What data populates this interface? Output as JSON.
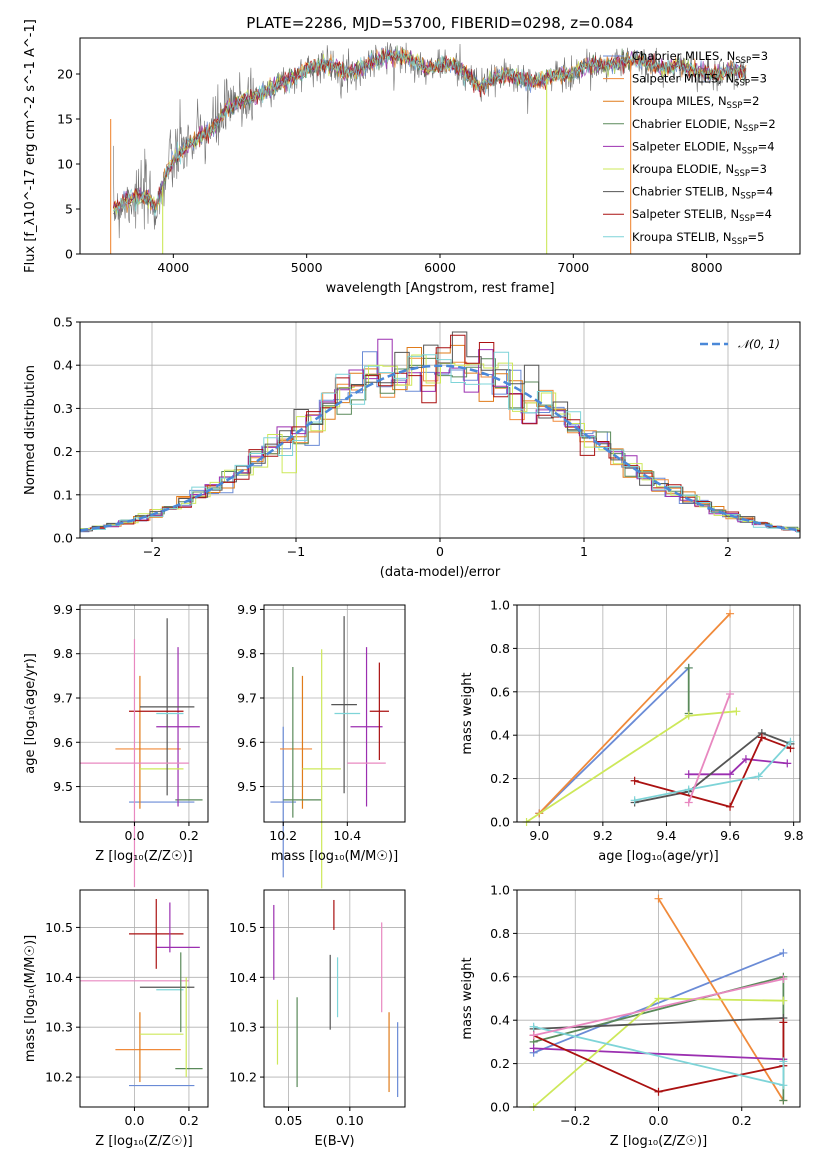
{
  "title": "PLATE=2286, MJD=53700, FIBERID=0298, z=0.084",
  "colors": {
    "chabrier_miles": "#6a8bd6",
    "salpeter_miles": "#f08a3a",
    "kroupa_miles": "#e07b1a",
    "chabrier_elodie": "#5a8a5a",
    "salpeter_elodie": "#9b2fb0",
    "kroupa_elodie": "#cde85a",
    "chabrier_stelib": "#555555",
    "salpeter_stelib": "#aa1111",
    "kroupa_stelib": "#7ed4d8",
    "pink": "#e888c0",
    "normal": "#4a88d8",
    "grid": "#b0b0b0",
    "data": "#707070"
  },
  "chart_data": [
    {
      "id": "spectrum",
      "type": "line",
      "xlabel": "wavelength [Angstrom, rest frame]",
      "ylabel": "Flux [f_λ10^-17 erg cm^-2 s^-1 A^-1]",
      "xlim": [
        3300,
        8700
      ],
      "ylim": [
        0,
        24
      ],
      "xticks": [
        4000,
        5000,
        6000,
        7000,
        8000
      ],
      "yticks": [
        0,
        5,
        10,
        15,
        20
      ],
      "grid": false,
      "legend_position": "right",
      "legend": [
        {
          "name": "Chabrier MILES",
          "nssp": "3",
          "color_key": "chabrier_miles"
        },
        {
          "name": "Salpeter MILES",
          "nssp": "3",
          "color_key": "salpeter_miles"
        },
        {
          "name": "Kroupa MILES",
          "nssp": "2",
          "color_key": "kroupa_miles"
        },
        {
          "name": "Chabrier ELODIE",
          "nssp": "2",
          "color_key": "chabrier_elodie"
        },
        {
          "name": "Salpeter ELODIE",
          "nssp": "4",
          "color_key": "salpeter_elodie"
        },
        {
          "name": "Kroupa ELODIE",
          "nssp": "3",
          "color_key": "kroupa_elodie"
        },
        {
          "name": "Chabrier STELIB",
          "nssp": "4",
          "color_key": "chabrier_stelib"
        },
        {
          "name": "Salpeter STELIB",
          "nssp": "4",
          "color_key": "salpeter_stelib"
        },
        {
          "name": "Kroupa STELIB",
          "nssp": "5",
          "color_key": "kroupa_stelib"
        }
      ],
      "continuum": [
        [
          3550,
          5
        ],
        [
          3650,
          6
        ],
        [
          3800,
          6.5
        ],
        [
          3870,
          5
        ],
        [
          3950,
          9
        ],
        [
          4000,
          10.5
        ],
        [
          4100,
          12
        ],
        [
          4200,
          13
        ],
        [
          4300,
          14
        ],
        [
          4400,
          16
        ],
        [
          4500,
          17
        ],
        [
          4600,
          17.5
        ],
        [
          4700,
          18
        ],
        [
          4800,
          19
        ],
        [
          4900,
          19.5
        ],
        [
          5000,
          20.5
        ],
        [
          5100,
          21
        ],
        [
          5200,
          21
        ],
        [
          5300,
          20
        ],
        [
          5400,
          20.5
        ],
        [
          5500,
          21.5
        ],
        [
          5600,
          22
        ],
        [
          5700,
          22
        ],
        [
          5800,
          21.5
        ],
        [
          5900,
          20.5
        ],
        [
          6000,
          21
        ],
        [
          6100,
          21
        ],
        [
          6200,
          20
        ],
        [
          6300,
          18.5
        ],
        [
          6400,
          19.5
        ],
        [
          6500,
          20
        ],
        [
          6600,
          19.5
        ],
        [
          6700,
          19
        ],
        [
          6800,
          19.5
        ],
        [
          6900,
          20
        ],
        [
          7000,
          20
        ],
        [
          7100,
          21
        ],
        [
          7200,
          21
        ],
        [
          7300,
          21
        ],
        [
          7400,
          21.5
        ],
        [
          7500,
          21.5
        ],
        [
          7600,
          21
        ],
        [
          7700,
          20.5
        ],
        [
          7800,
          21
        ],
        [
          7900,
          20.5
        ],
        [
          8000,
          20
        ],
        [
          8100,
          20
        ],
        [
          8200,
          20.5
        ],
        [
          8300,
          20
        ]
      ],
      "spikes": [
        [
          3530,
          0
        ],
        [
          3920,
          0
        ],
        [
          6800,
          0
        ],
        [
          7430,
          0
        ]
      ]
    },
    {
      "id": "residuals",
      "type": "bar",
      "xlabel": "(data-model)/error",
      "ylabel": "Normed distribution",
      "xlim": [
        -2.5,
        2.5
      ],
      "ylim": [
        0,
        0.5
      ],
      "xticks": [
        -2,
        -1,
        0,
        1,
        2
      ],
      "yticks": [
        0.0,
        0.1,
        0.2,
        0.3,
        0.4,
        0.5
      ],
      "grid": true,
      "legend_position": "top-right",
      "normal_label": "𝒩(0, 1)",
      "bin_width": 0.1
    },
    {
      "id": "age_vs_Z",
      "type": "scatter",
      "xlabel": "Z [log₁₀(Z/Z☉)]",
      "ylabel": "age  [log₁₀(age/yr)]",
      "xlim": [
        -0.2,
        0.27
      ],
      "ylim": [
        9.42,
        9.91
      ],
      "xticks": [
        0.0,
        0.2
      ],
      "yticks": [
        9.5,
        9.6,
        9.7,
        9.8,
        9.9
      ],
      "grid": true,
      "points": [
        {
          "c": "chabrier_miles",
          "x": 0.1,
          "xe": 0.12,
          "y": 9.465,
          "ye": 0.0
        },
        {
          "c": "salpeter_miles",
          "x": 0.05,
          "xe": 0.12,
          "y": 9.585,
          "ye": 0.0
        },
        {
          "c": "kroupa_miles",
          "x": 0.02,
          "xe": 0.0,
          "y": 9.6,
          "ye": 0.15
        },
        {
          "c": "chabrier_elodie",
          "x": 0.2,
          "xe": 0.05,
          "y": 9.47,
          "ye": 0.0
        },
        {
          "c": "salpeter_elodie",
          "x": 0.16,
          "xe": 0.08,
          "y": 9.635,
          "ye": 0.18
        },
        {
          "c": "kroupa_elodie",
          "x": 0.1,
          "xe": 0.08,
          "y": 9.54,
          "ye": 0.0
        },
        {
          "c": "chabrier_stelib",
          "x": 0.12,
          "xe": 0.1,
          "y": 9.68,
          "ye": 0.2
        },
        {
          "c": "salpeter_stelib",
          "x": 0.08,
          "xe": 0.1,
          "y": 9.67,
          "ye": 0.0
        },
        {
          "c": "kroupa_stelib",
          "x": 0.13,
          "xe": 0.05,
          "y": 9.665,
          "ye": 0.0
        },
        {
          "c": "pink",
          "x": 0.0,
          "xe": 0.2,
          "y": 9.553,
          "ye": 0.28
        }
      ]
    },
    {
      "id": "age_vs_mass",
      "type": "scatter",
      "xlabel": "mass [log₁₀(M/M☉)]",
      "ylabel": "",
      "xlim": [
        10.14,
        10.58
      ],
      "ylim": [
        9.42,
        9.91
      ],
      "xticks": [
        10.2,
        10.4
      ],
      "yticks": [
        9.5,
        9.6,
        9.7,
        9.8,
        9.9
      ],
      "grid": true,
      "points": [
        {
          "c": "chabrier_miles",
          "x": 10.2,
          "xe": 0.04,
          "y": 9.465,
          "ye": 0.17
        },
        {
          "c": "salpeter_miles",
          "x": 10.24,
          "xe": 0.05,
          "y": 9.585,
          "ye": 0.0
        },
        {
          "c": "kroupa_miles",
          "x": 10.26,
          "xe": 0.0,
          "y": 9.6,
          "ye": 0.15
        },
        {
          "c": "chabrier_elodie",
          "x": 10.26,
          "xe": 0.06,
          "y": 9.47,
          "ye": 0.0
        },
        {
          "c": "salpeter_elodie",
          "x": 10.46,
          "xe": 0.05,
          "y": 9.635,
          "ye": 0.18
        },
        {
          "c": "kroupa_elodie",
          "x": 10.32,
          "xe": 0.06,
          "y": 9.54,
          "ye": 0.27
        },
        {
          "c": "chabrier_stelib",
          "x": 10.39,
          "xe": 0.04,
          "y": 9.685,
          "ye": 0.2
        },
        {
          "c": "salpeter_stelib",
          "x": 10.5,
          "xe": 0.03,
          "y": 9.67,
          "ye": 0.11
        },
        {
          "c": "kroupa_stelib",
          "x": 10.4,
          "xe": 0.04,
          "y": 9.665,
          "ye": 0.0
        },
        {
          "c": "pink",
          "x": 10.46,
          "xe": 0.06,
          "y": 9.553,
          "ye": 0.0
        },
        {
          "c": "chabrier_elodie",
          "x": 10.23,
          "xe": 0.0,
          "y": 9.6,
          "ye": 0.17
        }
      ]
    },
    {
      "id": "massweight_vs_age",
      "type": "line",
      "xlabel": "age  [log₁₀(age/yr)]",
      "ylabel": "mass weight",
      "xlim": [
        8.93,
        9.82
      ],
      "ylim": [
        0,
        1
      ],
      "xticks": [
        9.0,
        9.2,
        9.4,
        9.6,
        9.8
      ],
      "yticks": [
        0.0,
        0.2,
        0.4,
        0.6,
        0.8,
        1.0
      ],
      "grid": true,
      "series": [
        {
          "c": "chabrier_miles",
          "x": [
            9.0,
            9.47
          ],
          "y": [
            0.04,
            0.71
          ]
        },
        {
          "c": "salpeter_miles",
          "x": [
            9.0,
            9.6
          ],
          "y": [
            0.04,
            0.96
          ]
        },
        {
          "c": "chabrier_elodie",
          "x": [
            9.47,
            9.47
          ],
          "y": [
            0.5,
            0.71
          ]
        },
        {
          "c": "salpeter_elodie",
          "x": [
            9.47,
            9.6,
            9.65,
            9.78
          ],
          "y": [
            0.22,
            0.22,
            0.29,
            0.27
          ]
        },
        {
          "c": "kroupa_elodie",
          "x": [
            8.96,
            9.47,
            9.62
          ],
          "y": [
            0.0,
            0.49,
            0.51
          ]
        },
        {
          "c": "chabrier_stelib",
          "x": [
            9.3,
            9.47,
            9.7,
            9.79
          ],
          "y": [
            0.09,
            0.14,
            0.41,
            0.36
          ]
        },
        {
          "c": "salpeter_stelib",
          "x": [
            9.3,
            9.6,
            9.7,
            9.79
          ],
          "y": [
            0.19,
            0.07,
            0.39,
            0.34
          ]
        },
        {
          "c": "kroupa_stelib",
          "x": [
            9.3,
            9.47,
            9.69,
            9.79
          ],
          "y": [
            0.1,
            0.15,
            0.21,
            0.37
          ]
        },
        {
          "c": "pink",
          "x": [
            9.47,
            9.6
          ],
          "y": [
            0.09,
            0.59
          ]
        }
      ]
    },
    {
      "id": "mass_vs_Z",
      "type": "scatter",
      "xlabel": "Z [log₁₀(Z/Z☉)]",
      "ylabel": "mass [log₁₀(M/M☉)]",
      "xlim": [
        -0.2,
        0.27
      ],
      "ylim": [
        10.14,
        10.575
      ],
      "xticks": [
        0.0,
        0.2
      ],
      "yticks": [
        10.2,
        10.3,
        10.4,
        10.5
      ],
      "grid": true,
      "points": [
        {
          "c": "chabrier_miles",
          "x": 0.1,
          "xe": 0.12,
          "y": 10.183,
          "ye": 0.0
        },
        {
          "c": "salpeter_miles",
          "x": 0.05,
          "xe": 0.12,
          "y": 10.255,
          "ye": 0.0
        },
        {
          "c": "kroupa_miles",
          "x": 0.02,
          "xe": 0.0,
          "y": 10.26,
          "ye": 0.07
        },
        {
          "c": "chabrier_elodie",
          "x": 0.2,
          "xe": 0.05,
          "y": 10.217,
          "ye": 0.0
        },
        {
          "c": "salpeter_elodie",
          "x": 0.16,
          "xe": 0.08,
          "y": 10.46,
          "ye": 0.0
        },
        {
          "c": "kroupa_elodie",
          "x": 0.1,
          "xe": 0.08,
          "y": 10.286,
          "ye": 0.0
        },
        {
          "c": "chabrier_stelib",
          "x": 0.12,
          "xe": 0.1,
          "y": 10.38,
          "ye": 0.0
        },
        {
          "c": "salpeter_stelib",
          "x": 0.08,
          "xe": 0.1,
          "y": 10.487,
          "ye": 0.07
        },
        {
          "c": "kroupa_stelib",
          "x": 0.13,
          "xe": 0.05,
          "y": 10.375,
          "ye": 0.0
        },
        {
          "c": "pink",
          "x": 0.0,
          "xe": 0.2,
          "y": 10.393,
          "ye": 0.0
        },
        {
          "c": "salpeter_elodie",
          "x": 0.13,
          "xe": 0.0,
          "y": 10.5,
          "ye": 0.05
        },
        {
          "c": "chabrier_elodie",
          "x": 0.17,
          "xe": 0.0,
          "y": 10.37,
          "ye": 0.08
        },
        {
          "c": "kroupa_elodie",
          "x": 0.19,
          "xe": 0.0,
          "y": 10.3,
          "ye": 0.1
        }
      ]
    },
    {
      "id": "mass_vs_ebv",
      "type": "scatter",
      "xlabel": "E(B-V)",
      "ylabel": "",
      "xlim": [
        0.03,
        0.145
      ],
      "ylim": [
        10.14,
        10.575
      ],
      "xticks": [
        0.05,
        0.1
      ],
      "yticks": [
        10.2,
        10.3,
        10.4,
        10.5
      ],
      "grid": true,
      "points": [
        {
          "c": "salpeter_elodie",
          "x": 0.038,
          "xe": 0.0,
          "y": 10.47,
          "ye": 0.075
        },
        {
          "c": "kroupa_elodie",
          "x": 0.041,
          "xe": 0.0,
          "y": 10.29,
          "ye": 0.065
        },
        {
          "c": "chabrier_elodie",
          "x": 0.057,
          "xe": 0.0,
          "y": 10.27,
          "ye": 0.09
        },
        {
          "c": "chabrier_stelib",
          "x": 0.084,
          "xe": 0.0,
          "y": 10.37,
          "ye": 0.075
        },
        {
          "c": "salpeter_stelib",
          "x": 0.087,
          "xe": 0.0,
          "y": 10.525,
          "ye": 0.03
        },
        {
          "c": "kroupa_stelib",
          "x": 0.09,
          "xe": 0.0,
          "y": 10.38,
          "ye": 0.06
        },
        {
          "c": "pink",
          "x": 0.126,
          "xe": 0.0,
          "y": 10.42,
          "ye": 0.09
        },
        {
          "c": "kroupa_miles",
          "x": 0.132,
          "xe": 0.0,
          "y": 10.25,
          "ye": 0.08
        },
        {
          "c": "chabrier_miles",
          "x": 0.139,
          "xe": 0.0,
          "y": 10.235,
          "ye": 0.075
        }
      ]
    },
    {
      "id": "massweight_vs_Z",
      "type": "line",
      "xlabel": "Z [log₁₀(Z/Z☉)]",
      "ylabel": "mass weight",
      "xlim": [
        -0.34,
        0.34
      ],
      "ylim": [
        0,
        1
      ],
      "xticks": [
        -0.2,
        0.0,
        0.2
      ],
      "yticks": [
        0.0,
        0.2,
        0.4,
        0.6,
        0.8,
        1.0
      ],
      "grid": true,
      "series": [
        {
          "c": "chabrier_miles",
          "x": [
            -0.3,
            0.3
          ],
          "y": [
            0.25,
            0.71
          ]
        },
        {
          "c": "salpeter_miles",
          "x": [
            0.0,
            0.3
          ],
          "y": [
            0.96,
            0.03
          ]
        },
        {
          "c": "chabrier_elodie",
          "x": [
            -0.3,
            0.3,
            0.3
          ],
          "y": [
            0.3,
            0.6,
            0.03
          ]
        },
        {
          "c": "salpeter_elodie",
          "x": [
            -0.3,
            0.3
          ],
          "y": [
            0.27,
            0.22
          ]
        },
        {
          "c": "kroupa_elodie",
          "x": [
            -0.3,
            0.0,
            0.3
          ],
          "y": [
            0.0,
            0.5,
            0.49
          ]
        },
        {
          "c": "chabrier_stelib",
          "x": [
            -0.3,
            0.3
          ],
          "y": [
            0.36,
            0.41
          ]
        },
        {
          "c": "salpeter_stelib",
          "x": [
            -0.3,
            0.0,
            0.3,
            0.3
          ],
          "y": [
            0.33,
            0.07,
            0.19,
            0.39
          ]
        },
        {
          "c": "kroupa_stelib",
          "x": [
            -0.3,
            0.3,
            0.3
          ],
          "y": [
            0.37,
            0.1,
            0.21
          ]
        },
        {
          "c": "pink",
          "x": [
            -0.3,
            0.3
          ],
          "y": [
            0.33,
            0.59
          ]
        }
      ]
    }
  ]
}
